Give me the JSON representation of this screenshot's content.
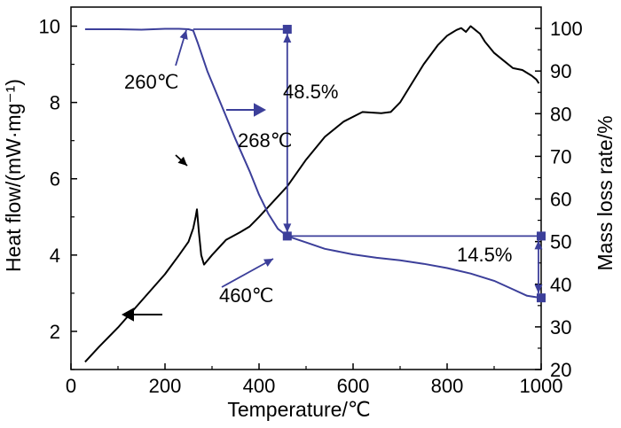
{
  "chart_data": {
    "type": "line",
    "xlabel": "Temperature/℃",
    "ylabel_left": "Heat flow/(mW·mg⁻¹)",
    "ylabel_right": "Mass loss rate/%",
    "xlim": [
      0,
      1000
    ],
    "ylim_left": [
      1,
      10.5
    ],
    "ylim_right": [
      20,
      105
    ],
    "xticks": [
      0,
      200,
      400,
      600,
      800,
      1000
    ],
    "yticks_left": [
      2,
      4,
      6,
      8,
      10
    ],
    "yticks_right": [
      20,
      30,
      40,
      50,
      60,
      70,
      80,
      90,
      100
    ],
    "grid": false,
    "colors": {
      "heat": "#000000",
      "mass": "#3c3f9a",
      "annotation": "#3c3f9a"
    },
    "series": [
      {
        "axis": "left",
        "x": [
          30,
          60,
          100,
          150,
          200,
          230,
          250,
          260,
          265,
          268,
          272,
          277,
          283,
          300,
          330,
          360,
          380,
          400,
          430,
          460,
          500,
          540,
          580,
          620,
          660,
          680,
          700,
          720,
          750,
          780,
          800,
          820,
          830,
          840,
          850,
          860,
          870,
          880,
          900,
          920,
          940,
          960,
          980,
          990,
          995
        ],
        "y": [
          1.2,
          1.6,
          2.1,
          2.8,
          3.5,
          4.0,
          4.35,
          4.7,
          5.0,
          5.2,
          4.6,
          4.0,
          3.75,
          4.0,
          4.4,
          4.6,
          4.75,
          5.0,
          5.4,
          5.8,
          6.5,
          7.1,
          7.5,
          7.75,
          7.72,
          7.75,
          8.0,
          8.4,
          9.0,
          9.5,
          9.75,
          9.9,
          9.95,
          9.85,
          10.0,
          9.9,
          9.8,
          9.6,
          9.3,
          9.1,
          8.9,
          8.85,
          8.7,
          8.6,
          8.5
        ]
      },
      {
        "axis": "right",
        "x": [
          30,
          100,
          150,
          200,
          230,
          250,
          260,
          270,
          290,
          320,
          350,
          380,
          400,
          420,
          440,
          460,
          500,
          540,
          600,
          650,
          700,
          750,
          800,
          850,
          900,
          940,
          970,
          1000
        ],
        "y": [
          99.8,
          99.8,
          99.7,
          99.9,
          99.9,
          99.8,
          99.5,
          96.5,
          90.0,
          82.0,
          74.0,
          66.5,
          61.0,
          56.5,
          53.0,
          51.3,
          49.8,
          48.3,
          47.0,
          46.2,
          45.6,
          44.8,
          43.8,
          42.5,
          40.8,
          38.8,
          37.3,
          36.8
        ]
      }
    ],
    "annotations": {
      "peak_label": "268℃",
      "onset_label": "260℃",
      "end_label": "460℃",
      "loss_1": "48.5%",
      "loss_2": "14.5%"
    }
  }
}
